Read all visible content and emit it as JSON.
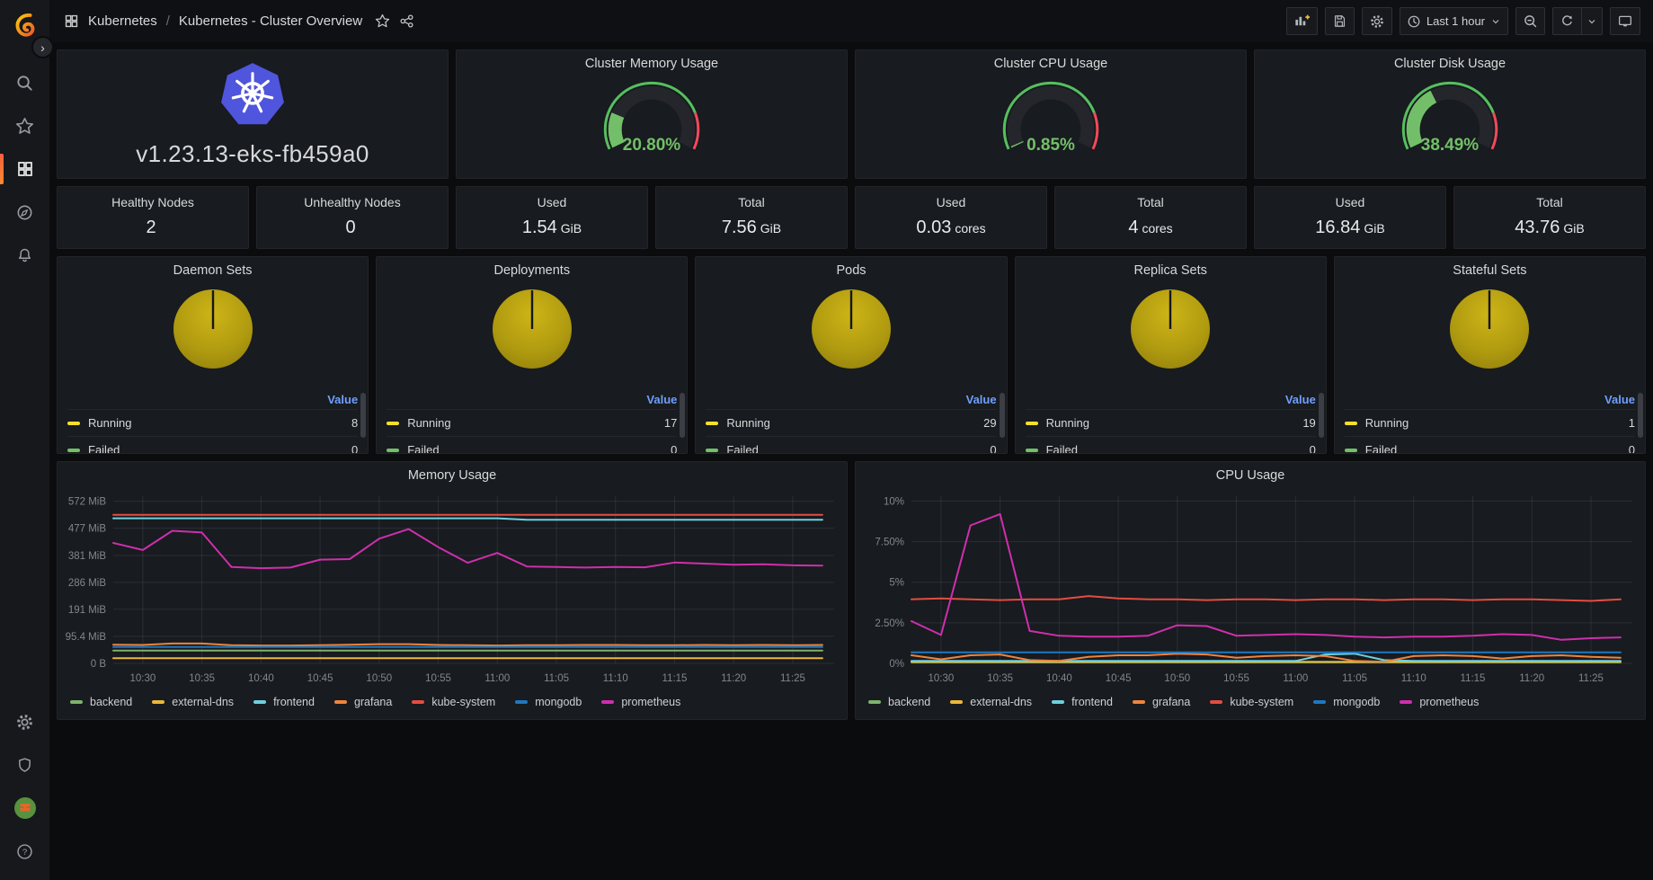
{
  "topbar": {
    "breadcrumb": {
      "section": "Kubernetes",
      "separator": "/",
      "page": "Kubernetes - Cluster Overview"
    },
    "toolbar": {
      "time_label": "Last 1 hour"
    }
  },
  "version_panel": {
    "value": "v1.23.13-eks-fb459a0",
    "logo_color": "#4f55dc"
  },
  "gauge_style": {
    "color": "#73bf69",
    "threshold_green": "#56bf5f",
    "threshold_red": "#f2495c",
    "track": "#24262c",
    "threshold_split": 0.8
  },
  "gauges": [
    {
      "title": "Cluster Memory Usage",
      "value": 20.8,
      "display": "20.80%"
    },
    {
      "title": "Cluster CPU Usage",
      "value": 0.85,
      "display": "0.85%"
    },
    {
      "title": "Cluster Disk Usage",
      "value": 38.49,
      "display": "38.49%"
    }
  ],
  "stats": [
    {
      "label": "Healthy Nodes",
      "value": "2",
      "unit": ""
    },
    {
      "label": "Unhealthy Nodes",
      "value": "0",
      "unit": ""
    },
    {
      "label": "Used",
      "value": "1.54",
      "unit": "GiB"
    },
    {
      "label": "Total",
      "value": "7.56",
      "unit": "GiB"
    },
    {
      "label": "Used",
      "value": "0.03",
      "unit": "cores"
    },
    {
      "label": "Total",
      "value": "4",
      "unit": "cores"
    },
    {
      "label": "Used",
      "value": "16.84",
      "unit": "GiB"
    },
    {
      "label": "Total",
      "value": "43.76",
      "unit": "GiB"
    }
  ],
  "pie_style": {
    "fill_top": "#cdb417",
    "fill_mid": "#b09b10",
    "fill_edge": "#93800c",
    "slit": "#15171c",
    "value_header_color": "#6e9fff"
  },
  "pies": [
    {
      "title": "Daemon Sets",
      "header": "Value",
      "rows": [
        {
          "label": "Running",
          "value": 8,
          "color": "#fade2a"
        },
        {
          "label": "Failed",
          "value": 0,
          "color": "#73bf69"
        }
      ]
    },
    {
      "title": "Deployments",
      "header": "Value",
      "rows": [
        {
          "label": "Running",
          "value": 17,
          "color": "#fade2a"
        },
        {
          "label": "Failed",
          "value": 0,
          "color": "#73bf69"
        }
      ]
    },
    {
      "title": "Pods",
      "header": "Value",
      "rows": [
        {
          "label": "Running",
          "value": 29,
          "color": "#fade2a"
        },
        {
          "label": "Failed",
          "value": 0,
          "color": "#73bf69"
        }
      ]
    },
    {
      "title": "Replica Sets",
      "header": "Value",
      "rows": [
        {
          "label": "Running",
          "value": 19,
          "color": "#fade2a"
        },
        {
          "label": "Failed",
          "value": 0,
          "color": "#73bf69"
        }
      ]
    },
    {
      "title": "Stateful Sets",
      "header": "Value",
      "rows": [
        {
          "label": "Running",
          "value": 1,
          "color": "#fade2a"
        },
        {
          "label": "Failed",
          "value": 0,
          "color": "#73bf69"
        }
      ]
    }
  ],
  "chart_data": [
    {
      "type": "line",
      "title": "Memory Usage",
      "unit": "MiB",
      "grid": true,
      "legend_position": "bottom",
      "x_minutes": [
        27.5,
        30,
        32.5,
        35,
        37.5,
        40,
        42.5,
        45,
        47.5,
        50,
        52.5,
        55,
        57.5,
        60,
        62.5,
        65,
        67.5,
        70,
        72.5,
        75,
        77.5,
        80,
        82.5,
        85,
        87.5
      ],
      "x_domain": [
        27.5,
        88.5
      ],
      "xticks": [
        [
          30,
          "10:30"
        ],
        [
          35,
          "10:35"
        ],
        [
          40,
          "10:40"
        ],
        [
          45,
          "10:45"
        ],
        [
          50,
          "10:50"
        ],
        [
          55,
          "10:55"
        ],
        [
          60,
          "11:00"
        ],
        [
          65,
          "11:05"
        ],
        [
          70,
          "11:10"
        ],
        [
          75,
          "11:15"
        ],
        [
          80,
          "11:20"
        ],
        [
          85,
          "11:25"
        ]
      ],
      "y_domain": [
        0,
        590
      ],
      "yticks": [
        [
          0,
          "0 B"
        ],
        [
          95.4,
          "95.4 MiB"
        ],
        [
          191,
          "191 MiB"
        ],
        [
          286,
          "286 MiB"
        ],
        [
          381,
          "381 MiB"
        ],
        [
          477,
          "477 MiB"
        ],
        [
          572,
          "572 MiB"
        ]
      ],
      "series": [
        {
          "name": "backend",
          "color": "#7eb26d",
          "values": [
            45,
            45,
            45,
            45,
            45,
            45,
            45,
            45,
            45,
            45,
            45,
            45,
            45,
            45,
            45,
            45,
            45,
            45,
            45,
            45,
            45,
            45,
            45,
            45,
            45
          ]
        },
        {
          "name": "external-dns",
          "color": "#eab839",
          "values": [
            18,
            18,
            18,
            18,
            18,
            18,
            18,
            18,
            18,
            18,
            18,
            18,
            18,
            18,
            18,
            18,
            18,
            18,
            18,
            18,
            18,
            18,
            18,
            18,
            18
          ]
        },
        {
          "name": "frontend",
          "color": "#6ed0e0",
          "values": [
            512,
            512,
            512,
            512,
            512,
            512,
            512,
            512,
            512,
            512,
            512,
            512,
            512,
            512,
            507,
            507,
            507,
            507,
            507,
            507,
            507,
            507,
            507,
            507,
            507
          ]
        },
        {
          "name": "grafana",
          "color": "#ef843c",
          "values": [
            66,
            65,
            70,
            70,
            64,
            63,
            63,
            64,
            66,
            68,
            68,
            65,
            64,
            63,
            64,
            64,
            65,
            65,
            64,
            64,
            65,
            64,
            65,
            64,
            65
          ]
        },
        {
          "name": "kube-system",
          "color": "#e24d42",
          "values": [
            524,
            524,
            524,
            524,
            524,
            524,
            524,
            524,
            524,
            524,
            524,
            524,
            524,
            524,
            524,
            524,
            524,
            524,
            524,
            524,
            524,
            524,
            524,
            524,
            524
          ]
        },
        {
          "name": "mongodb",
          "color": "#1f78c1",
          "values": [
            58,
            58,
            58,
            58,
            58,
            58,
            58,
            58,
            58,
            58,
            58,
            58,
            58,
            58,
            58,
            58,
            58,
            58,
            58,
            58,
            58,
            58,
            58,
            58,
            58
          ]
        },
        {
          "name": "prometheus",
          "color": "#ce2fad",
          "values": [
            425,
            400,
            468,
            462,
            340,
            336,
            338,
            366,
            368,
            440,
            474,
            410,
            355,
            390,
            342,
            340,
            338,
            340,
            339,
            356,
            352,
            348,
            350,
            346,
            345
          ]
        }
      ]
    },
    {
      "type": "line",
      "title": "CPU Usage",
      "unit": "%",
      "grid": true,
      "legend_position": "bottom",
      "x_minutes": [
        27.5,
        30,
        32.5,
        35,
        37.5,
        40,
        42.5,
        45,
        47.5,
        50,
        52.5,
        55,
        57.5,
        60,
        62.5,
        65,
        67.5,
        70,
        72.5,
        75,
        77.5,
        80,
        82.5,
        85,
        87.5
      ],
      "x_domain": [
        27.5,
        88.5
      ],
      "xticks": [
        [
          30,
          "10:30"
        ],
        [
          35,
          "10:35"
        ],
        [
          40,
          "10:40"
        ],
        [
          45,
          "10:45"
        ],
        [
          50,
          "10:50"
        ],
        [
          55,
          "10:55"
        ],
        [
          60,
          "11:00"
        ],
        [
          65,
          "11:05"
        ],
        [
          70,
          "11:10"
        ],
        [
          75,
          "11:15"
        ],
        [
          80,
          "11:20"
        ],
        [
          85,
          "11:25"
        ]
      ],
      "y_domain": [
        0,
        10.3
      ],
      "yticks": [
        [
          0,
          "0%"
        ],
        [
          2.5,
          "2.50%"
        ],
        [
          5,
          "5%"
        ],
        [
          7.5,
          "7.50%"
        ],
        [
          10,
          "10%"
        ]
      ],
      "series": [
        {
          "name": "backend",
          "color": "#7eb26d",
          "values": [
            0.06,
            0.06,
            0.06,
            0.06,
            0.06,
            0.06,
            0.06,
            0.06,
            0.06,
            0.06,
            0.06,
            0.06,
            0.06,
            0.06,
            0.06,
            0.06,
            0.06,
            0.06,
            0.06,
            0.06,
            0.06,
            0.06,
            0.06,
            0.06,
            0.06
          ]
        },
        {
          "name": "external-dns",
          "color": "#eab839",
          "values": [
            0.1,
            0.1,
            0.1,
            0.1,
            0.1,
            0.1,
            0.1,
            0.1,
            0.1,
            0.1,
            0.1,
            0.1,
            0.1,
            0.1,
            0.1,
            0.1,
            0.1,
            0.1,
            0.1,
            0.1,
            0.1,
            0.1,
            0.1,
            0.1,
            0.1
          ]
        },
        {
          "name": "frontend",
          "color": "#6ed0e0",
          "values": [
            0.15,
            0.15,
            0.15,
            0.15,
            0.15,
            0.15,
            0.15,
            0.15,
            0.15,
            0.15,
            0.15,
            0.15,
            0.15,
            0.15,
            0.55,
            0.6,
            0.2,
            0.15,
            0.15,
            0.15,
            0.15,
            0.15,
            0.15,
            0.15,
            0.15
          ]
        },
        {
          "name": "grafana",
          "color": "#ef843c",
          "values": [
            0.5,
            0.25,
            0.5,
            0.55,
            0.2,
            0.15,
            0.4,
            0.5,
            0.5,
            0.6,
            0.55,
            0.35,
            0.45,
            0.5,
            0.45,
            0.15,
            0.1,
            0.45,
            0.5,
            0.45,
            0.3,
            0.45,
            0.5,
            0.4,
            0.35
          ]
        },
        {
          "name": "kube-system",
          "color": "#e24d42",
          "values": [
            3.95,
            4,
            3.95,
            3.9,
            3.95,
            3.95,
            4.15,
            4,
            3.95,
            3.95,
            3.9,
            3.95,
            3.95,
            3.9,
            3.95,
            3.95,
            3.9,
            3.95,
            3.95,
            3.9,
            3.95,
            3.95,
            3.9,
            3.85,
            3.95
          ]
        },
        {
          "name": "mongodb",
          "color": "#1f78c1",
          "values": [
            0.68,
            0.68,
            0.68,
            0.68,
            0.68,
            0.68,
            0.68,
            0.68,
            0.68,
            0.68,
            0.68,
            0.68,
            0.68,
            0.68,
            0.68,
            0.68,
            0.68,
            0.68,
            0.68,
            0.68,
            0.68,
            0.68,
            0.68,
            0.68,
            0.68
          ]
        },
        {
          "name": "prometheus",
          "color": "#ce2fad",
          "values": [
            2.6,
            1.75,
            8.5,
            9.2,
            2,
            1.7,
            1.65,
            1.65,
            1.7,
            2.35,
            2.3,
            1.7,
            1.75,
            1.8,
            1.75,
            1.65,
            1.6,
            1.65,
            1.65,
            1.7,
            1.8,
            1.75,
            1.45,
            1.55,
            1.6
          ]
        }
      ]
    }
  ]
}
